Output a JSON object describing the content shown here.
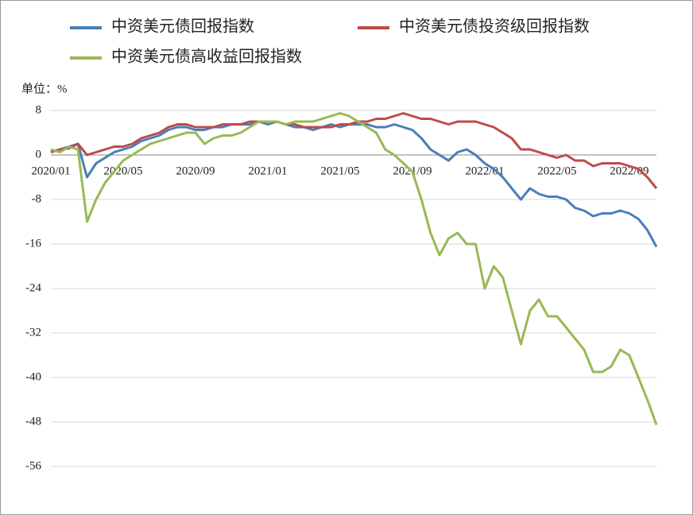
{
  "chart_data": {
    "type": "line",
    "unit_label": "单位：%",
    "categories": [
      "2020/01",
      null,
      null,
      null,
      null,
      null,
      null,
      null,
      "2020/05",
      null,
      null,
      null,
      null,
      null,
      null,
      null,
      "2020/09",
      null,
      null,
      null,
      null,
      null,
      null,
      null,
      "2021/01",
      null,
      null,
      null,
      null,
      null,
      null,
      null,
      "2021/05",
      null,
      null,
      null,
      null,
      null,
      null,
      null,
      "2021/09",
      null,
      null,
      null,
      null,
      null,
      null,
      null,
      "2022/01",
      null,
      null,
      null,
      null,
      null,
      null,
      null,
      "2022/05",
      null,
      null,
      null,
      null,
      null,
      null,
      null,
      "2022/09",
      null,
      null,
      null
    ],
    "series": [
      {
        "name": "中资美元债回报指数",
        "color": "#4a7ebb",
        "values": [
          0.5,
          1,
          1.5,
          2,
          -4,
          -1.5,
          -0.5,
          0.5,
          1,
          1.5,
          2.5,
          3,
          3.5,
          4.5,
          5,
          5,
          4.5,
          4.5,
          5,
          5,
          5.5,
          5.5,
          5.5,
          6,
          5.5,
          6,
          5.5,
          5,
          5,
          4.5,
          5,
          5.5,
          5,
          5.5,
          5.5,
          5.5,
          5,
          5,
          5.5,
          5,
          4.5,
          3,
          1,
          0,
          -1,
          0.5,
          1,
          0,
          -1.5,
          -2.5,
          -4,
          -6,
          -8,
          -6,
          -7,
          -7.5,
          -7.5,
          -8,
          -9.5,
          -10,
          -11,
          -10.5,
          -10.5,
          -10,
          -10.5,
          -11.5,
          -13.5,
          -16.5
        ]
      },
      {
        "name": "中资美元债投资级回报指数",
        "color": "#be4b48",
        "values": [
          0.5,
          1,
          1.2,
          2,
          0,
          0.5,
          1,
          1.5,
          1.5,
          2,
          3,
          3.5,
          4,
          5,
          5.5,
          5.5,
          5,
          5,
          5,
          5.5,
          5.5,
          5.5,
          6,
          6,
          6,
          6,
          5.5,
          5.5,
          5,
          5,
          5,
          5,
          5.5,
          5.5,
          6,
          6,
          6.5,
          6.5,
          7,
          7.5,
          7,
          6.5,
          6.5,
          6,
          5.5,
          6,
          6,
          6,
          5.5,
          5,
          4,
          3,
          1,
          1,
          0.5,
          0,
          -0.5,
          0,
          -1,
          -1,
          -2,
          -1.5,
          -1.5,
          -1.5,
          -2,
          -2.5,
          -4,
          -6
        ]
      },
      {
        "name": "中资美元债高收益回报指数",
        "color": "#98b954",
        "values": [
          1,
          0.5,
          1.5,
          1,
          -12,
          -8,
          -5,
          -3,
          -1,
          0,
          1,
          2,
          2.5,
          3,
          3.5,
          4,
          4,
          2,
          3,
          3.5,
          3.5,
          4,
          5,
          6,
          6,
          6,
          5.5,
          6,
          6,
          6,
          6.5,
          7,
          7.5,
          7,
          6,
          5,
          4,
          1,
          0,
          -1.5,
          -3,
          -8,
          -14,
          -18,
          -15,
          -14,
          -16,
          -16,
          -24,
          -20,
          -22,
          -28,
          -34,
          -28,
          -26,
          -29,
          -29,
          -31,
          -33,
          -35,
          -39,
          -39,
          -38,
          -35,
          -36,
          -40,
          -44,
          -48.5
        ]
      }
    ],
    "ylim": [
      -56,
      8
    ],
    "yticks": [
      -56,
      -48,
      -40,
      -32,
      -24,
      -16,
      -8,
      0,
      8
    ],
    "grid": true,
    "legend": "top"
  }
}
